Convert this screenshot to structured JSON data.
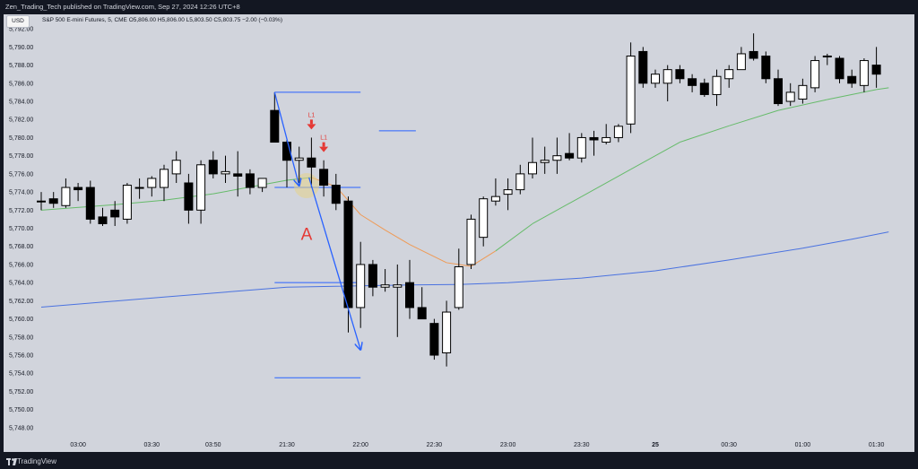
{
  "header": {
    "published_by": "Zen_Trading_Tech published on TradingView.com, Sep 27, 2024 12:26 UTC+8",
    "legend": "S&P 500 E-mini Futures, 5, CME  O5,806.00  H5,806.00  L5,803.50  C5,803.75  −2.00 (−0.03%)",
    "currency_button": "USD"
  },
  "footer": {
    "brand": "TradingView"
  },
  "colors": {
    "background": "#131722",
    "plot_bg": "#d1d4dc",
    "candle_up": "#ffffff",
    "candle_down": "#000000",
    "ema_short": "#66bb6a",
    "ema_short_warm": "#ef9a55",
    "ema_long": "#4a72e0",
    "annotation_red": "#e53935",
    "annotation_blue": "#2962ff",
    "highlight_fill": "#e6d28a"
  },
  "annotations": {
    "signal_labels": [
      "L1",
      "L1"
    ],
    "setup_label": "A"
  },
  "chart_data": {
    "type": "candlestick",
    "title": "S&P 500 E-mini Futures, 5, CME",
    "yaxis": {
      "ylim": [
        5747,
        5793.6
      ],
      "ticks": [
        5792,
        5790,
        5788,
        5786,
        5784,
        5782,
        5780,
        5778,
        5776,
        5774,
        5772,
        5770,
        5768,
        5766,
        5764,
        5762,
        5760,
        5758,
        5756,
        5754,
        5752,
        5750,
        5748
      ],
      "tick_labels": [
        "5,792.00",
        "5,790.00",
        "5,788.00",
        "5,786.00",
        "5,784.00",
        "5,782.00",
        "5,780.00",
        "5,778.00",
        "5,776.00",
        "5,774.00",
        "5,772.00",
        "5,770.00",
        "5,768.00",
        "5,766.00",
        "5,764.00",
        "5,762.00",
        "5,760.00",
        "5,758.00",
        "5,756.00",
        "5,754.00",
        "5,752.00",
        "5,750.00",
        "5,748.00"
      ],
      "position": "left"
    },
    "xaxis": {
      "ticks": [
        {
          "bar": 3,
          "label": "03:00"
        },
        {
          "bar": 9,
          "label": "03:30"
        },
        {
          "bar": 14,
          "label": "03:50"
        },
        {
          "bar": 20,
          "label": "21:30"
        },
        {
          "bar": 26,
          "label": "22:00"
        },
        {
          "bar": 32,
          "label": "22:30"
        },
        {
          "bar": 38,
          "label": "23:00"
        },
        {
          "bar": 44,
          "label": "23:30"
        },
        {
          "bar": 50,
          "label": "25"
        },
        {
          "bar": 56,
          "label": "00:30"
        },
        {
          "bar": 62,
          "label": "01:00"
        },
        {
          "bar": 68,
          "label": "01:30"
        }
      ]
    },
    "grid": false,
    "candles": [
      {
        "o": 5773.0,
        "h": 5774.0,
        "l": 5772.0,
        "c": 5773.0
      },
      {
        "o": 5773.25,
        "h": 5774.0,
        "l": 5772.25,
        "c": 5772.75
      },
      {
        "o": 5772.5,
        "h": 5775.5,
        "l": 5772.25,
        "c": 5774.5
      },
      {
        "o": 5774.5,
        "h": 5775.0,
        "l": 5773.0,
        "c": 5774.25
      },
      {
        "o": 5774.5,
        "h": 5775.25,
        "l": 5770.5,
        "c": 5771.0
      },
      {
        "o": 5771.25,
        "h": 5772.25,
        "l": 5770.25,
        "c": 5770.5
      },
      {
        "o": 5772.0,
        "h": 5773.0,
        "l": 5770.25,
        "c": 5771.25
      },
      {
        "o": 5771.0,
        "h": 5775.0,
        "l": 5770.5,
        "c": 5774.75
      },
      {
        "o": 5774.5,
        "h": 5775.5,
        "l": 5773.25,
        "c": 5774.5
      },
      {
        "o": 5774.5,
        "h": 5775.75,
        "l": 5773.5,
        "c": 5775.5
      },
      {
        "o": 5774.5,
        "h": 5777.0,
        "l": 5773.0,
        "c": 5776.5
      },
      {
        "o": 5776.0,
        "h": 5778.5,
        "l": 5775.0,
        "c": 5777.5
      },
      {
        "o": 5775.0,
        "h": 5776.0,
        "l": 5770.5,
        "c": 5772.0
      },
      {
        "o": 5772.0,
        "h": 5777.5,
        "l": 5770.5,
        "c": 5777.0
      },
      {
        "o": 5777.5,
        "h": 5778.5,
        "l": 5775.5,
        "c": 5776.0
      },
      {
        "o": 5776.0,
        "h": 5778.0,
        "l": 5775.0,
        "c": 5776.25
      },
      {
        "o": 5776.0,
        "h": 5778.5,
        "l": 5773.5,
        "c": 5775.75
      },
      {
        "o": 5776.0,
        "h": 5776.5,
        "l": 5773.75,
        "c": 5774.5
      },
      {
        "o": 5774.5,
        "h": 5775.5,
        "l": 5774.0,
        "c": 5775.5
      },
      {
        "o": 5783.0,
        "h": 5785.0,
        "l": 5779.5,
        "c": 5779.5
      },
      {
        "o": 5779.5,
        "h": 5779.75,
        "l": 5774.5,
        "c": 5777.5
      },
      {
        "o": 5777.5,
        "h": 5779.0,
        "l": 5775.0,
        "c": 5777.75
      },
      {
        "o": 5777.75,
        "h": 5780.0,
        "l": 5774.5,
        "c": 5776.75
      },
      {
        "o": 5776.5,
        "h": 5777.5,
        "l": 5773.5,
        "c": 5774.75
      },
      {
        "o": 5774.75,
        "h": 5776.0,
        "l": 5772.0,
        "c": 5772.75
      },
      {
        "o": 5773.0,
        "h": 5773.5,
        "l": 5758.5,
        "c": 5761.25
      },
      {
        "o": 5761.25,
        "h": 5768.5,
        "l": 5759.0,
        "c": 5766.0
      },
      {
        "o": 5766.0,
        "h": 5766.5,
        "l": 5762.5,
        "c": 5763.5
      },
      {
        "o": 5763.5,
        "h": 5765.5,
        "l": 5763.0,
        "c": 5763.75
      },
      {
        "o": 5763.5,
        "h": 5766.0,
        "l": 5758.0,
        "c": 5763.75
      },
      {
        "o": 5764.0,
        "h": 5766.5,
        "l": 5760.0,
        "c": 5761.25
      },
      {
        "o": 5761.25,
        "h": 5763.5,
        "l": 5760.0,
        "c": 5760.0
      },
      {
        "o": 5759.5,
        "h": 5760.0,
        "l": 5755.5,
        "c": 5756.0
      },
      {
        "o": 5756.25,
        "h": 5762.0,
        "l": 5754.75,
        "c": 5760.75
      },
      {
        "o": 5761.25,
        "h": 5767.75,
        "l": 5761.0,
        "c": 5765.75
      },
      {
        "o": 5766.0,
        "h": 5771.5,
        "l": 5765.5,
        "c": 5771.0
      },
      {
        "o": 5769.0,
        "h": 5773.5,
        "l": 5768.0,
        "c": 5773.25
      },
      {
        "o": 5773.0,
        "h": 5775.5,
        "l": 5772.5,
        "c": 5773.5
      },
      {
        "o": 5773.75,
        "h": 5775.5,
        "l": 5772.0,
        "c": 5774.25
      },
      {
        "o": 5774.25,
        "h": 5777.0,
        "l": 5773.75,
        "c": 5776.0
      },
      {
        "o": 5776.0,
        "h": 5780.0,
        "l": 5775.5,
        "c": 5777.25
      },
      {
        "o": 5777.25,
        "h": 5779.0,
        "l": 5776.0,
        "c": 5777.5
      },
      {
        "o": 5777.5,
        "h": 5780.0,
        "l": 5776.0,
        "c": 5778.0
      },
      {
        "o": 5778.25,
        "h": 5780.5,
        "l": 5777.5,
        "c": 5777.75
      },
      {
        "o": 5777.75,
        "h": 5780.5,
        "l": 5777.25,
        "c": 5780.0
      },
      {
        "o": 5780.0,
        "h": 5780.75,
        "l": 5778.0,
        "c": 5779.75
      },
      {
        "o": 5779.5,
        "h": 5781.5,
        "l": 5779.25,
        "c": 5780.0
      },
      {
        "o": 5780.0,
        "h": 5781.5,
        "l": 5779.5,
        "c": 5781.25
      },
      {
        "o": 5781.5,
        "h": 5790.5,
        "l": 5780.5,
        "c": 5789.0
      },
      {
        "o": 5789.5,
        "h": 5790.0,
        "l": 5785.5,
        "c": 5786.0
      },
      {
        "o": 5786.0,
        "h": 5787.5,
        "l": 5785.5,
        "c": 5787.0
      },
      {
        "o": 5786.0,
        "h": 5788.0,
        "l": 5784.0,
        "c": 5787.5
      },
      {
        "o": 5787.5,
        "h": 5788.0,
        "l": 5786.0,
        "c": 5786.5
      },
      {
        "o": 5786.5,
        "h": 5787.0,
        "l": 5785.0,
        "c": 5785.75
      },
      {
        "o": 5786.0,
        "h": 5786.5,
        "l": 5784.5,
        "c": 5784.75
      },
      {
        "o": 5784.75,
        "h": 5787.5,
        "l": 5783.5,
        "c": 5786.75
      },
      {
        "o": 5786.5,
        "h": 5788.0,
        "l": 5785.5,
        "c": 5787.5
      },
      {
        "o": 5787.5,
        "h": 5790.0,
        "l": 5787.5,
        "c": 5789.25
      },
      {
        "o": 5789.5,
        "h": 5791.5,
        "l": 5788.5,
        "c": 5788.75
      },
      {
        "o": 5789.0,
        "h": 5789.5,
        "l": 5786.0,
        "c": 5786.5
      },
      {
        "o": 5786.5,
        "h": 5787.5,
        "l": 5783.5,
        "c": 5783.75
      },
      {
        "o": 5784.0,
        "h": 5786.0,
        "l": 5783.5,
        "c": 5785.0
      },
      {
        "o": 5784.25,
        "h": 5786.5,
        "l": 5783.75,
        "c": 5785.75
      },
      {
        "o": 5785.5,
        "h": 5789.0,
        "l": 5785.0,
        "c": 5788.5
      },
      {
        "o": 5789.0,
        "h": 5789.25,
        "l": 5788.0,
        "c": 5789.0
      },
      {
        "o": 5788.75,
        "h": 5789.0,
        "l": 5786.0,
        "c": 5786.5
      },
      {
        "o": 5786.75,
        "h": 5787.5,
        "l": 5785.5,
        "c": 5786.0
      },
      {
        "o": 5785.75,
        "h": 5788.75,
        "l": 5785.0,
        "c": 5788.5
      },
      {
        "o": 5788.0,
        "h": 5790.0,
        "l": 5785.5,
        "c": 5787.0
      }
    ],
    "ema_short": [
      [
        0,
        5772.0
      ],
      [
        6,
        5772.6
      ],
      [
        10,
        5773.1
      ],
      [
        14,
        5773.8
      ],
      [
        18,
        5774.8
      ],
      [
        20,
        5775.3
      ],
      [
        22,
        5775.6
      ],
      [
        24,
        5774.6
      ],
      [
        26,
        5771.5
      ],
      [
        28,
        5769.8
      ],
      [
        30,
        5768.2
      ],
      [
        33,
        5766.2
      ],
      [
        35,
        5765.8
      ],
      [
        37,
        5767.5
      ],
      [
        40,
        5770.5
      ],
      [
        44,
        5773.5
      ],
      [
        48,
        5776.5
      ],
      [
        52,
        5779.5
      ],
      [
        56,
        5781.3
      ],
      [
        60,
        5783.0
      ],
      [
        64,
        5784.2
      ],
      [
        68,
        5785.3
      ],
      [
        69,
        5785.5
      ]
    ],
    "ema_long": [
      [
        0,
        5761.3
      ],
      [
        10,
        5762.4
      ],
      [
        20,
        5763.5
      ],
      [
        30,
        5763.75
      ],
      [
        34,
        5763.8
      ],
      [
        38,
        5764.0
      ],
      [
        44,
        5764.5
      ],
      [
        50,
        5765.3
      ],
      [
        56,
        5766.5
      ],
      [
        62,
        5767.8
      ],
      [
        66,
        5768.8
      ],
      [
        69,
        5769.6
      ]
    ],
    "levels": [
      {
        "price": 5785.0,
        "from": 19.0,
        "to": 26.0
      },
      {
        "price": 5774.5,
        "from": 19.0,
        "to": 26.0
      },
      {
        "price": 5764.0,
        "from": 19.0,
        "to": 26.0
      },
      {
        "price": 5753.5,
        "from": 19.0,
        "to": 26.0
      },
      {
        "price": 5780.75,
        "from": 27.5,
        "to": 30.5
      }
    ],
    "arrows": [
      {
        "from": [
          19.0,
          5785.0
        ],
        "to": [
          21.0,
          5774.7
        ]
      },
      {
        "from": [
          21.8,
          5775.6
        ],
        "to": [
          26.0,
          5756.6
        ]
      }
    ],
    "signals": [
      {
        "bar": 22,
        "price": 5781.0,
        "label": "L1"
      },
      {
        "bar": 23,
        "price": 5778.5,
        "label": "L1"
      }
    ],
    "setup": {
      "bar": 21.6,
      "price": 5774.7,
      "label_price": 5769.3
    }
  }
}
